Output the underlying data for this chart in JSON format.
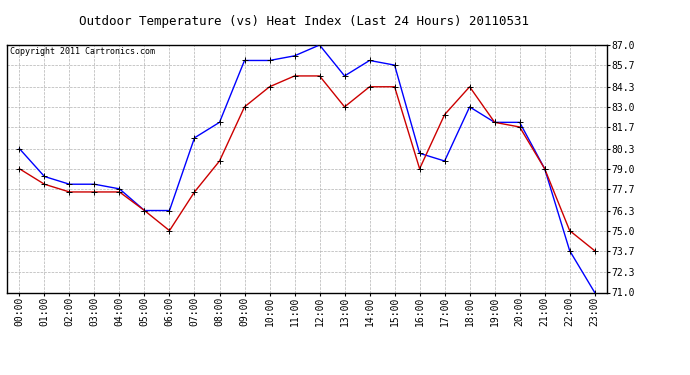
{
  "title": "Outdoor Temperature (vs) Heat Index (Last 24 Hours) 20110531",
  "copyright": "Copyright 2011 Cartronics.com",
  "hours": [
    "00:00",
    "01:00",
    "02:00",
    "03:00",
    "04:00",
    "05:00",
    "06:00",
    "07:00",
    "08:00",
    "09:00",
    "10:00",
    "11:00",
    "12:00",
    "13:00",
    "14:00",
    "15:00",
    "16:00",
    "17:00",
    "18:00",
    "19:00",
    "20:00",
    "21:00",
    "22:00",
    "23:00"
  ],
  "blue_temp": [
    80.3,
    78.5,
    78.0,
    78.0,
    77.7,
    76.3,
    76.3,
    81.0,
    82.0,
    86.0,
    86.0,
    86.3,
    87.0,
    85.0,
    86.0,
    85.7,
    80.0,
    79.5,
    83.0,
    82.0,
    82.0,
    79.0,
    73.7,
    71.0
  ],
  "red_heat": [
    79.0,
    78.0,
    77.5,
    77.5,
    77.5,
    76.3,
    75.0,
    77.5,
    79.5,
    83.0,
    84.3,
    85.0,
    85.0,
    83.0,
    84.3,
    84.3,
    79.0,
    82.5,
    84.3,
    82.0,
    81.7,
    79.0,
    75.0,
    73.7
  ],
  "blue_color": "#0000ff",
  "red_color": "#cc0000",
  "ylim_min": 71.0,
  "ylim_max": 87.0,
  "yticks": [
    71.0,
    72.3,
    73.7,
    75.0,
    76.3,
    77.7,
    79.0,
    80.3,
    81.7,
    83.0,
    84.3,
    85.7,
    87.0
  ],
  "background_color": "#ffffff",
  "plot_bg_color": "#ffffff",
  "grid_color": "#aaaaaa",
  "title_fontsize": 9,
  "copyright_fontsize": 6,
  "tick_fontsize": 7,
  "linewidth": 1.0,
  "marker_size": 4
}
